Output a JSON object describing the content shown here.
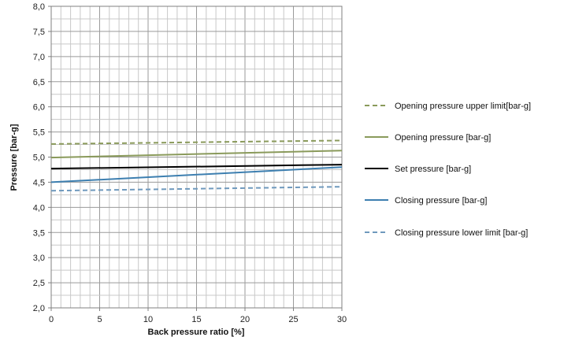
{
  "chart_data": {
    "type": "line",
    "xlabel": "Back pressure ratio [%]",
    "ylabel": "Pressure [bar-g]",
    "xlim": [
      0,
      30
    ],
    "ylim": [
      2.0,
      8.0
    ],
    "x_ticks": [
      "0",
      "5",
      "10",
      "15",
      "20",
      "25",
      "30"
    ],
    "y_ticks": [
      "2,0",
      "2,5",
      "3,0",
      "3,5",
      "4,0",
      "4,5",
      "5,0",
      "5,5",
      "6,0",
      "6,5",
      "7,0",
      "7,5",
      "8,0"
    ],
    "grid": true,
    "legend_position": "right",
    "series": [
      {
        "name": "Opening pressure upper limit[bar-g]",
        "color": "#8a9a5b",
        "dash": true,
        "x": [
          0,
          30
        ],
        "y": [
          5.26,
          5.33
        ]
      },
      {
        "name": "Opening pressure [bar-g]",
        "color": "#8a9a5b",
        "dash": false,
        "x": [
          0,
          30
        ],
        "y": [
          4.99,
          5.13
        ]
      },
      {
        "name": "Set pressure [bar-g]",
        "color": "#000000",
        "dash": false,
        "x": [
          0,
          30
        ],
        "y": [
          4.77,
          4.85
        ]
      },
      {
        "name": "Closing pressure [bar-g]",
        "color": "#3d7fb0",
        "dash": false,
        "x": [
          0,
          30
        ],
        "y": [
          4.5,
          4.8
        ]
      },
      {
        "name": "Closing pressure lower limit [bar-g]",
        "color": "#6f99bd",
        "dash": true,
        "x": [
          0,
          30
        ],
        "y": [
          4.33,
          4.41
        ]
      }
    ]
  }
}
